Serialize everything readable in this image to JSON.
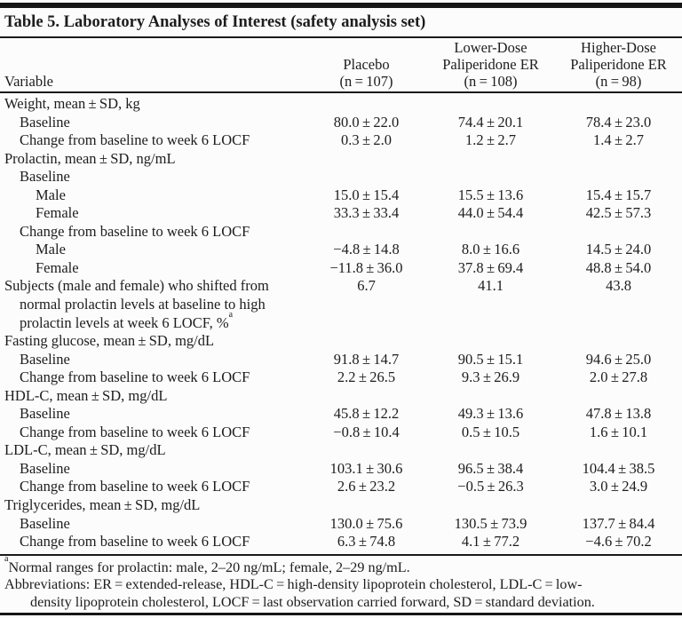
{
  "colors": {
    "text": "#1d1d1d",
    "rule": "#1a1a1a",
    "background": "#fcfcfc"
  },
  "table": {
    "title": "Table 5. Laboratory Analyses of Interest (safety analysis set)",
    "header": {
      "variable": "Variable",
      "groups": [
        {
          "name_line": "Placebo",
          "n_line": "(n = 107)"
        },
        {
          "dose_line": "Lower-Dose",
          "name_line": "Paliperidone ER",
          "n_line": "(n = 108)"
        },
        {
          "dose_line": "Higher-Dose",
          "name_line": "Paliperidone ER",
          "n_line": "(n = 98)"
        }
      ]
    },
    "rows": [
      {
        "indent": 0,
        "label": "Weight, mean ± SD, kg"
      },
      {
        "indent": 1,
        "label": "Baseline",
        "placebo": "80.0 ± 22.0",
        "lower": "74.4 ± 20.1",
        "higher": "78.4 ± 23.0"
      },
      {
        "indent": 1,
        "label": "Change from baseline to week 6 LOCF",
        "placebo": "0.3 ± 2.0",
        "lower": "1.2 ± 2.7",
        "higher": "1.4 ± 2.7"
      },
      {
        "indent": 0,
        "label": "Prolactin, mean ± SD, ng/mL"
      },
      {
        "indent": 1,
        "label": "Baseline"
      },
      {
        "indent": 2,
        "label": "Male",
        "placebo": "15.0 ± 15.4",
        "lower": "15.5 ± 13.6",
        "higher": "15.4 ± 15.7"
      },
      {
        "indent": 2,
        "label": "Female",
        "placebo": "33.3 ± 33.4",
        "lower": "44.0 ± 54.4",
        "higher": "42.5 ± 57.3"
      },
      {
        "indent": 1,
        "label": "Change from baseline to week 6 LOCF"
      },
      {
        "indent": 2,
        "label": "Male",
        "placebo": "−4.8 ± 14.8",
        "lower": "8.0 ± 16.6",
        "higher": "14.5 ± 24.0"
      },
      {
        "indent": 2,
        "label": "Female",
        "placebo": "−11.8 ± 36.0",
        "lower": "37.8 ± 69.4",
        "higher": "48.8 ± 54.0"
      },
      {
        "indent": 0,
        "lines": [
          "Subjects (male and female) who shifted from",
          "normal prolactin levels at baseline to high",
          "prolactin levels at week 6 LOCF, %"
        ],
        "sup": "a",
        "placebo": "6.7",
        "lower": "41.1",
        "higher": "43.8"
      },
      {
        "indent": 0,
        "label": "Fasting glucose, mean ± SD, mg/dL"
      },
      {
        "indent": 1,
        "label": "Baseline",
        "placebo": "91.8 ± 14.7",
        "lower": "90.5 ± 15.1",
        "higher": "94.6 ± 25.0"
      },
      {
        "indent": 1,
        "label": "Change from baseline to week 6 LOCF",
        "placebo": "2.2 ± 26.5",
        "lower": "9.3 ± 26.9",
        "higher": "2.0 ± 27.8"
      },
      {
        "indent": 0,
        "label": "HDL-C, mean ± SD, mg/dL"
      },
      {
        "indent": 1,
        "label": "Baseline",
        "placebo": "45.8 ± 12.2",
        "lower": "49.3 ± 13.6",
        "higher": "47.8 ± 13.8"
      },
      {
        "indent": 1,
        "label": "Change from baseline to week 6 LOCF",
        "placebo": "−0.8 ± 10.4",
        "lower": "0.5 ± 10.5",
        "higher": "1.6 ± 10.1"
      },
      {
        "indent": 0,
        "label": "LDL-C, mean ± SD, mg/dL"
      },
      {
        "indent": 1,
        "label": "Baseline",
        "placebo": "103.1 ± 30.6",
        "lower": "96.5 ± 38.4",
        "higher": "104.4 ± 38.5"
      },
      {
        "indent": 1,
        "label": "Change from baseline to week 6 LOCF",
        "placebo": "2.6 ± 23.2",
        "lower": "−0.5 ± 26.3",
        "higher": "3.0 ± 24.9"
      },
      {
        "indent": 0,
        "label": "Triglycerides, mean ± SD, mg/dL"
      },
      {
        "indent": 1,
        "label": "Baseline",
        "placebo": "130.0 ± 75.6",
        "lower": "130.5 ± 73.9",
        "higher": "137.7 ± 84.4"
      },
      {
        "indent": 1,
        "label": "Change from baseline to week 6 LOCF",
        "placebo": "6.3 ± 74.8",
        "lower": "4.1 ± 77.2",
        "higher": "−4.6 ± 70.2"
      }
    ],
    "footnotes": {
      "a_sup": "a",
      "a_text": "Normal ranges for prolactin: male, 2–20 ng/mL; female, 2–29 ng/mL.",
      "abbrev_line1": "Abbreviations: ER = extended-release, HDL-C = high-density lipoprotein cholesterol, LDL-C = low-",
      "abbrev_line2": "density lipoprotein cholesterol, LOCF = last observation carried forward, SD = standard deviation."
    }
  }
}
